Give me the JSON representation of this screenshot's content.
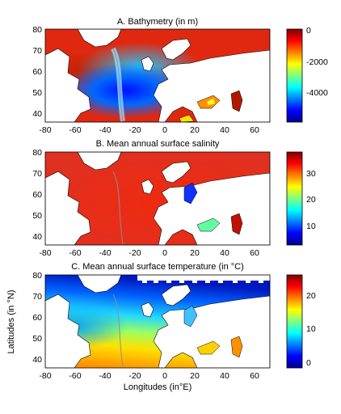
{
  "chart_data": [
    {
      "type": "heatmap",
      "title": "A. Bathymetry (in m)",
      "xlim": [
        -80,
        70
      ],
      "ylim": [
        35,
        80
      ],
      "xticks": [
        -80,
        -60,
        -40,
        -20,
        0,
        20,
        40,
        60
      ],
      "yticks": [
        40,
        50,
        60,
        70,
        80
      ],
      "colorbar": {
        "colormap": "jet",
        "range": [
          -5000,
          0
        ],
        "ticks": [
          0,
          -2000,
          -4000
        ],
        "tick_labels": [
          "0",
          "-2000",
          "-4000"
        ]
      },
      "land_color": "#ffffff",
      "field_description": "shallow shelves (near 0) in red; deep North Atlantic basin (-4000 to -5000) in blue; Mid-Atlantic Ridge visible as a lighter band"
    },
    {
      "type": "heatmap",
      "title": "B. Mean annual surface salinity",
      "xlim": [
        -80,
        70
      ],
      "ylim": [
        35,
        80
      ],
      "xticks": [
        -80,
        -60,
        -40,
        -20,
        0,
        20,
        40,
        60
      ],
      "yticks": [
        40,
        50,
        60,
        70,
        80
      ],
      "colorbar": {
        "colormap": "jet",
        "range": [
          2,
          39
        ],
        "ticks": [
          30,
          20,
          10
        ],
        "tick_labels": [
          "30",
          "20",
          "10"
        ]
      },
      "land_color": "#ffffff",
      "field_description": "open ocean ~35-37 in red; Baltic Sea low (~5) in blue; Black Sea ~18 in cyan"
    },
    {
      "type": "heatmap",
      "title": "C. Mean annual surface temperature (in °C)",
      "xlabel": "Longitudes (in°E)",
      "ylabel": "Latitudes (in °N)",
      "xlim": [
        -80,
        70
      ],
      "ylim": [
        35,
        80
      ],
      "xticks": [
        -80,
        -60,
        -40,
        -20,
        0,
        20,
        40,
        60
      ],
      "yticks": [
        40,
        50,
        60,
        70,
        80
      ],
      "colorbar": {
        "colormap": "jet",
        "range": [
          -2,
          25
        ],
        "ticks": [
          20,
          10,
          0
        ],
        "tick_labels": [
          "20",
          "10",
          "0"
        ]
      },
      "land_color": "#ffffff",
      "field_description": "warm subtropics (~20-24) in orange/red; cold subpolar and Arctic (~-1 to 5) in blue; Mediterranean ~18-20"
    }
  ]
}
